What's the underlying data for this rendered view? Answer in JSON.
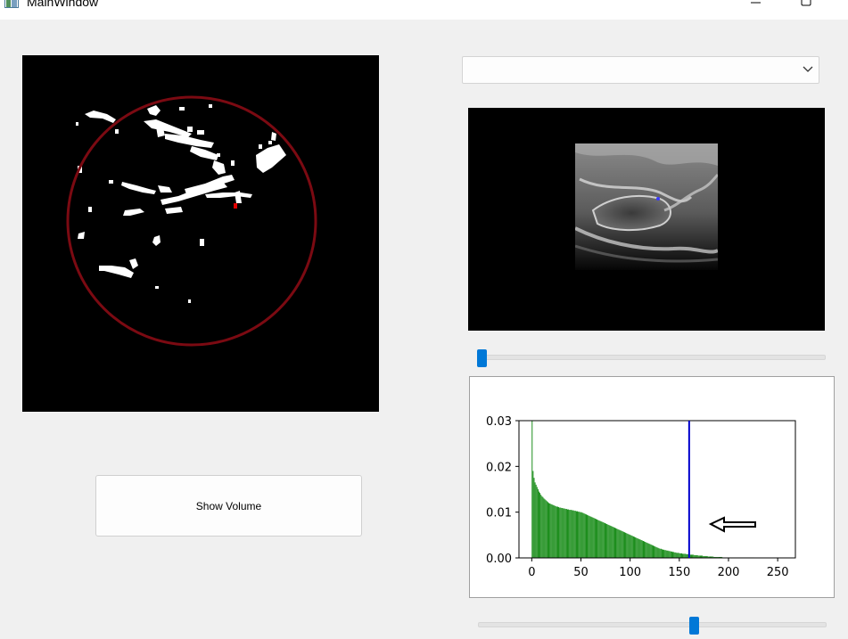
{
  "window": {
    "title": "MainWindow"
  },
  "left_panel": {
    "show_volume_label": "Show Volume"
  },
  "right_panel": {
    "combo_value": "",
    "slice_slider_value": 0.0,
    "threshold_slider_value": 0.62
  },
  "colors": {
    "circle": "#7b0a12",
    "bars": "#008000",
    "threshold_line": "#0000cc",
    "slider_handle": "#0078d7"
  },
  "chart_data": {
    "type": "bar",
    "title": "",
    "xlabel": "",
    "ylabel": "",
    "xlim": [
      -13,
      268
    ],
    "ylim": [
      0.0,
      0.03
    ],
    "xticks": [
      "0",
      "50",
      "100",
      "150",
      "200",
      "250"
    ],
    "yticks": [
      "0.00",
      "0.01",
      "0.02",
      "0.03"
    ],
    "x_start": 0,
    "bin_width": 1,
    "values": [
      0.035,
      0.019,
      0.0175,
      0.0165,
      0.016,
      0.0155,
      0.015,
      0.0145,
      0.0142,
      0.0138,
      0.0135,
      0.0133,
      0.013,
      0.0128,
      0.0126,
      0.0124,
      0.0122,
      0.012,
      0.0119,
      0.0118,
      0.0117,
      0.0116,
      0.0115,
      0.0114,
      0.0113,
      0.0112,
      0.0112,
      0.0111,
      0.011,
      0.011,
      0.0109,
      0.0109,
      0.0108,
      0.0108,
      0.0107,
      0.0107,
      0.0106,
      0.0106,
      0.0105,
      0.0105,
      0.0105,
      0.0104,
      0.0104,
      0.0103,
      0.0103,
      0.0102,
      0.0102,
      0.0101,
      0.0101,
      0.01,
      0.01,
      0.0099,
      0.0098,
      0.0097,
      0.0096,
      0.0095,
      0.0094,
      0.0093,
      0.0092,
      0.0091,
      0.009,
      0.0089,
      0.0088,
      0.0087,
      0.0086,
      0.0085,
      0.0084,
      0.0083,
      0.0082,
      0.0081,
      0.008,
      0.0079,
      0.0078,
      0.0077,
      0.0076,
      0.0075,
      0.0074,
      0.0073,
      0.0072,
      0.0071,
      0.007,
      0.0069,
      0.0068,
      0.0067,
      0.0066,
      0.0065,
      0.0064,
      0.0063,
      0.0062,
      0.0061,
      0.006,
      0.0059,
      0.0058,
      0.0057,
      0.0056,
      0.0055,
      0.0054,
      0.0053,
      0.0052,
      0.0051,
      0.005,
      0.0049,
      0.0048,
      0.0047,
      0.0046,
      0.0045,
      0.0044,
      0.0043,
      0.0042,
      0.0041,
      0.004,
      0.0039,
      0.0038,
      0.0037,
      0.0036,
      0.0035,
      0.0034,
      0.0033,
      0.0032,
      0.0031,
      0.003,
      0.0029,
      0.0028,
      0.0027,
      0.0026,
      0.0025,
      0.0024,
      0.0023,
      0.0022,
      0.0021,
      0.002,
      0.002,
      0.0019,
      0.0018,
      0.0018,
      0.0017,
      0.0017,
      0.0016,
      0.0016,
      0.0015,
      0.0015,
      0.0014,
      0.0014,
      0.0013,
      0.0013,
      0.0012,
      0.0012,
      0.0011,
      0.0011,
      0.0011,
      0.001,
      0.001,
      0.001,
      0.0009,
      0.0009,
      0.0009,
      0.0009,
      0.0008,
      0.0008,
      0.0008,
      0.0008,
      0.0007,
      0.0007,
      0.0007,
      0.0007,
      0.0006,
      0.0006,
      0.0006,
      0.0006,
      0.0005,
      0.0005,
      0.0005,
      0.0005,
      0.0005,
      0.0004,
      0.0004,
      0.0004,
      0.0004,
      0.0004,
      0.0003,
      0.0003,
      0.0003,
      0.0003,
      0.0003,
      0.0003,
      0.0002,
      0.0002,
      0.0002,
      0.0002,
      0.0002,
      0.0002,
      0.0002,
      0.0002,
      0.0002,
      0.0001,
      0.0001,
      0.0001,
      0.0001,
      0.0001,
      0.0001,
      0.0001,
      0.0001,
      0.0001,
      0.0001,
      0.0001,
      0.0001,
      0.0001,
      0.0001,
      0.0001,
      0.0001,
      0.0001,
      0.0001,
      0.0001,
      0.0001,
      0.0001,
      0.0001,
      0.0001,
      0.0001,
      0.0001,
      0.0001,
      0.0001,
      0.0001,
      0.0001,
      0.0001,
      0.0001,
      0.0001
    ],
    "threshold_x": 160,
    "annotation": "arrow pointing left toward threshold line"
  }
}
